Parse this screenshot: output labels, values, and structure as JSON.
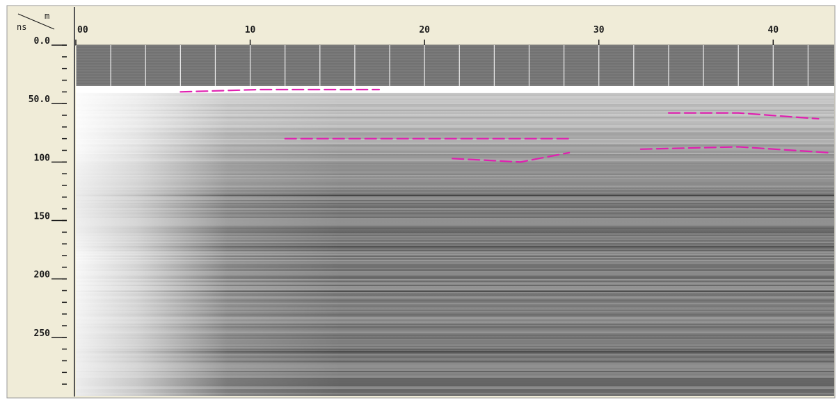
{
  "chart_data": {
    "type": "radargram",
    "corner": {
      "x_unit": "m",
      "y_unit": "ns"
    },
    "x_axis": {
      "unit": "m",
      "range": [
        0,
        43.5
      ],
      "ticks": [
        0,
        10,
        20,
        30,
        40
      ],
      "tick_labels": [
        "00",
        "10",
        "20",
        "30",
        "40"
      ]
    },
    "y_axis": {
      "unit": "ns",
      "range": [
        0,
        300
      ],
      "ticks": [
        0,
        50,
        100,
        150,
        200,
        250
      ],
      "tick_labels": [
        "0.0",
        "50.0",
        "100",
        "150",
        "200",
        "250"
      ],
      "minor_step": 10
    },
    "header_band": {
      "time_range": [
        0,
        35
      ],
      "marker_spacing": 2
    },
    "interpreted_reflectors": [
      {
        "id": "r1",
        "points": [
          [
            6.0,
            40
          ],
          [
            10.5,
            38
          ],
          [
            17.4,
            38
          ]
        ]
      },
      {
        "id": "r2",
        "points": [
          [
            12.0,
            80
          ],
          [
            20.0,
            80
          ],
          [
            28.3,
            80
          ]
        ]
      },
      {
        "id": "r3",
        "points": [
          [
            21.6,
            97
          ],
          [
            25.5,
            100
          ],
          [
            28.3,
            92
          ]
        ]
      },
      {
        "id": "r4",
        "points": [
          [
            32.4,
            89
          ],
          [
            38.0,
            87
          ],
          [
            43.2,
            92
          ]
        ]
      },
      {
        "id": "r5",
        "points": [
          [
            34.0,
            58
          ],
          [
            38.0,
            58
          ],
          [
            42.6,
            63
          ]
        ]
      }
    ],
    "colors": {
      "reflector": "#e020b0",
      "background_light": "#f2f2f2",
      "background_dark": "#6e6e6e",
      "frame": "#f0ecd8"
    }
  }
}
